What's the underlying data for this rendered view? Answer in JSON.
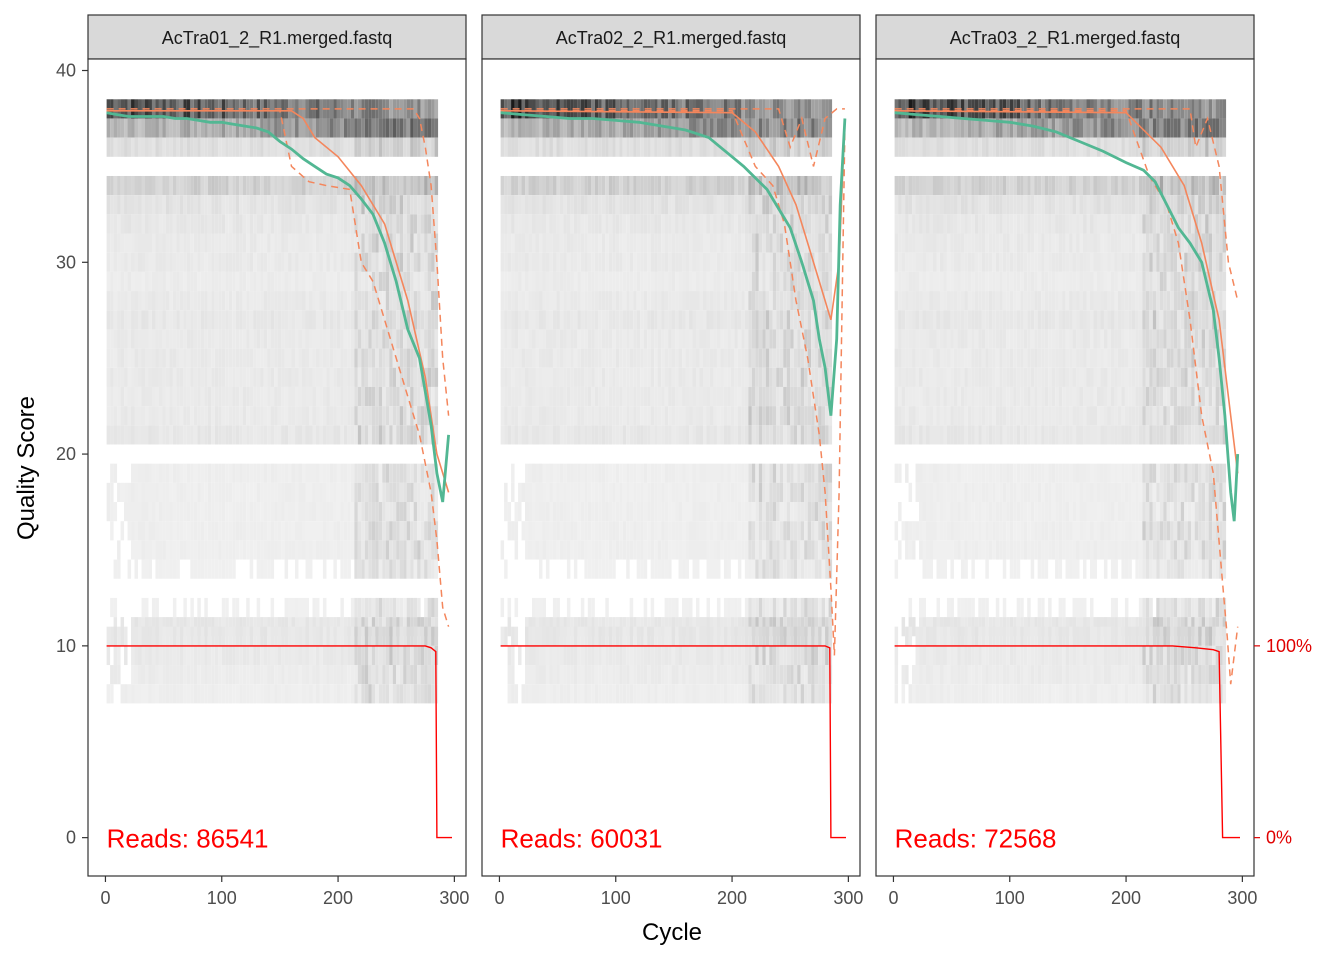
{
  "chart_data": {
    "type": "line",
    "xlabel": "Cycle",
    "ylabel": "Quality Score",
    "xlim": [
      -15,
      310
    ],
    "ylim": [
      -2,
      40.6
    ],
    "x_ticks": [
      0,
      100,
      200,
      300
    ],
    "y_ticks": [
      0,
      10,
      20,
      30,
      40
    ],
    "secondary_y_ticks": [
      {
        "value": 10,
        "label": "100%"
      },
      {
        "value": 0,
        "label": "0%"
      }
    ],
    "colors": {
      "mean": "#52b793",
      "quartiles": "#f4865c",
      "reads_fraction": "#ff0000",
      "heat_high": "#111111",
      "heat_low": "#f0f0f0"
    },
    "panels": [
      {
        "title": "AcTra01_2_R1.merged.fastq",
        "reads_label": "Reads:  86541",
        "mean": [
          [
            1,
            37.8
          ],
          [
            10,
            37.7
          ],
          [
            20,
            37.6
          ],
          [
            30,
            37.6
          ],
          [
            40,
            37.6
          ],
          [
            50,
            37.6
          ],
          [
            60,
            37.5
          ],
          [
            70,
            37.5
          ],
          [
            80,
            37.4
          ],
          [
            90,
            37.3
          ],
          [
            100,
            37.3
          ],
          [
            110,
            37.2
          ],
          [
            120,
            37.1
          ],
          [
            130,
            37.0
          ],
          [
            140,
            36.8
          ],
          [
            150,
            36.3
          ],
          [
            160,
            35.9
          ],
          [
            170,
            35.4
          ],
          [
            180,
            35.0
          ],
          [
            190,
            34.6
          ],
          [
            200,
            34.4
          ],
          [
            210,
            34.0
          ],
          [
            220,
            33.3
          ],
          [
            230,
            32.5
          ],
          [
            240,
            31.0
          ],
          [
            250,
            29.0
          ],
          [
            260,
            26.5
          ],
          [
            270,
            25.0
          ],
          [
            280,
            21.5
          ],
          [
            285,
            19.0
          ],
          [
            290,
            17.5
          ],
          [
            295,
            21.0
          ]
        ],
        "q25": [
          [
            1,
            37.9
          ],
          [
            150,
            37.9
          ],
          [
            160,
            35.0
          ],
          [
            175,
            34.2
          ],
          [
            190,
            34.0
          ],
          [
            210,
            33.8
          ],
          [
            220,
            30.0
          ],
          [
            230,
            29.0
          ],
          [
            240,
            27.0
          ],
          [
            250,
            25.0
          ],
          [
            260,
            23.0
          ],
          [
            270,
            21.0
          ],
          [
            280,
            18.0
          ],
          [
            285,
            15.5
          ],
          [
            290,
            12.0
          ],
          [
            295,
            11.0
          ]
        ],
        "q75": [
          [
            1,
            38.0
          ],
          [
            265,
            38.0
          ],
          [
            270,
            37.5
          ],
          [
            275,
            36.0
          ],
          [
            280,
            34.0
          ],
          [
            285,
            30.0
          ],
          [
            290,
            25.0
          ],
          [
            295,
            22.0
          ]
        ],
        "median": [
          [
            1,
            37.9
          ],
          [
            160,
            37.9
          ],
          [
            170,
            37.5
          ],
          [
            180,
            36.5
          ],
          [
            200,
            35.5
          ],
          [
            220,
            34.0
          ],
          [
            240,
            32.0
          ],
          [
            260,
            28.0
          ],
          [
            275,
            24.0
          ],
          [
            285,
            20.0
          ],
          [
            295,
            18.0
          ]
        ],
        "reads_fraction": [
          [
            1,
            1.0
          ],
          [
            275,
            1.0
          ],
          [
            280,
            0.99
          ],
          [
            284,
            0.97
          ],
          [
            285,
            0.0
          ],
          [
            298,
            0.0
          ]
        ]
      },
      {
        "title": "AcTra02_2_R1.merged.fastq",
        "reads_label": "Reads:  60031",
        "mean": [
          [
            1,
            37.8
          ],
          [
            20,
            37.7
          ],
          [
            40,
            37.6
          ],
          [
            60,
            37.5
          ],
          [
            80,
            37.5
          ],
          [
            100,
            37.4
          ],
          [
            120,
            37.3
          ],
          [
            140,
            37.1
          ],
          [
            160,
            36.9
          ],
          [
            180,
            36.5
          ],
          [
            190,
            36.0
          ],
          [
            200,
            35.5
          ],
          [
            210,
            35.0
          ],
          [
            220,
            34.4
          ],
          [
            230,
            33.8
          ],
          [
            240,
            32.8
          ],
          [
            250,
            31.8
          ],
          [
            260,
            30.0
          ],
          [
            270,
            28.0
          ],
          [
            275,
            26.0
          ],
          [
            280,
            24.5
          ],
          [
            285,
            22.0
          ],
          [
            290,
            26.0
          ],
          [
            293,
            33.0
          ],
          [
            297,
            37.5
          ]
        ],
        "q25": [
          [
            1,
            37.9
          ],
          [
            200,
            37.9
          ],
          [
            220,
            35.0
          ],
          [
            235,
            34.0
          ],
          [
            245,
            32.0
          ],
          [
            255,
            28.0
          ],
          [
            265,
            25.0
          ],
          [
            275,
            21.0
          ],
          [
            280,
            18.0
          ],
          [
            285,
            13.0
          ],
          [
            288,
            9.5
          ],
          [
            292,
            18.0
          ],
          [
            297,
            37.0
          ]
        ],
        "q75": [
          [
            1,
            38.0
          ],
          [
            240,
            38.0
          ],
          [
            250,
            36.0
          ],
          [
            260,
            37.5
          ],
          [
            270,
            35.0
          ],
          [
            280,
            37.5
          ],
          [
            290,
            38.0
          ],
          [
            297,
            38.0
          ]
        ],
        "median": [
          [
            1,
            37.9
          ],
          [
            200,
            37.8
          ],
          [
            220,
            36.8
          ],
          [
            240,
            35.0
          ],
          [
            255,
            33.0
          ],
          [
            265,
            31.0
          ],
          [
            275,
            29.0
          ],
          [
            285,
            27.0
          ],
          [
            292,
            30.0
          ],
          [
            297,
            37.5
          ]
        ],
        "reads_fraction": [
          [
            1,
            1.0
          ],
          [
            280,
            1.0
          ],
          [
            284,
            0.99
          ],
          [
            285,
            0.0
          ],
          [
            298,
            0.0
          ]
        ]
      },
      {
        "title": "AcTra03_2_R1.merged.fastq",
        "reads_label": "Reads:  72568",
        "mean": [
          [
            1,
            37.8
          ],
          [
            20,
            37.7
          ],
          [
            40,
            37.6
          ],
          [
            60,
            37.5
          ],
          [
            80,
            37.4
          ],
          [
            100,
            37.3
          ],
          [
            120,
            37.1
          ],
          [
            140,
            36.8
          ],
          [
            160,
            36.3
          ],
          [
            180,
            35.8
          ],
          [
            200,
            35.2
          ],
          [
            215,
            34.8
          ],
          [
            225,
            34.2
          ],
          [
            235,
            33.0
          ],
          [
            245,
            31.8
          ],
          [
            255,
            31.0
          ],
          [
            265,
            30.0
          ],
          [
            275,
            27.5
          ],
          [
            280,
            25.0
          ],
          [
            285,
            22.0
          ],
          [
            290,
            18.0
          ],
          [
            293,
            16.5
          ],
          [
            296,
            20.0
          ]
        ],
        "q25": [
          [
            1,
            37.9
          ],
          [
            200,
            37.9
          ],
          [
            220,
            34.5
          ],
          [
            235,
            33.0
          ],
          [
            245,
            31.0
          ],
          [
            255,
            27.0
          ],
          [
            265,
            22.0
          ],
          [
            275,
            19.0
          ],
          [
            282,
            14.0
          ],
          [
            287,
            10.5
          ],
          [
            290,
            8.0
          ],
          [
            296,
            11.0
          ]
        ],
        "q75": [
          [
            1,
            38.0
          ],
          [
            255,
            38.0
          ],
          [
            260,
            36.0
          ],
          [
            270,
            37.5
          ],
          [
            280,
            35.0
          ],
          [
            288,
            30.0
          ],
          [
            296,
            28.0
          ]
        ],
        "median": [
          [
            1,
            37.9
          ],
          [
            200,
            37.8
          ],
          [
            230,
            36.0
          ],
          [
            250,
            34.0
          ],
          [
            265,
            31.0
          ],
          [
            280,
            27.0
          ],
          [
            290,
            22.0
          ],
          [
            296,
            19.0
          ]
        ],
        "reads_fraction": [
          [
            1,
            1.0
          ],
          [
            240,
            1.0
          ],
          [
            260,
            0.99
          ],
          [
            275,
            0.98
          ],
          [
            280,
            0.97
          ],
          [
            283,
            0.0
          ],
          [
            298,
            0.0
          ]
        ]
      }
    ]
  }
}
